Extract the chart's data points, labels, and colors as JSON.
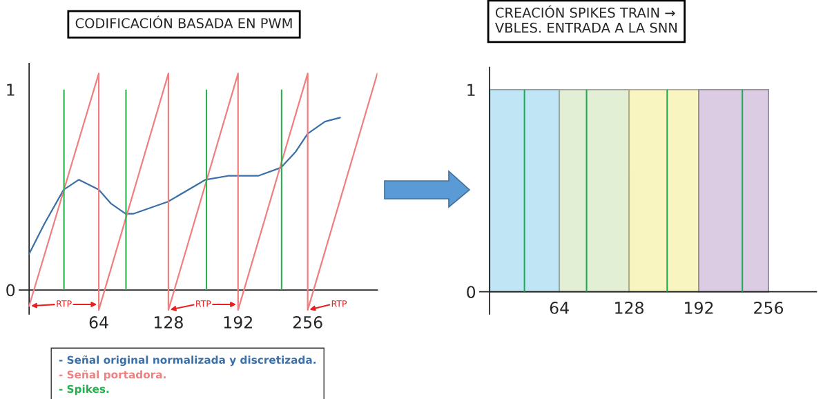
{
  "chart_data": [
    {
      "type": "line",
      "title": "CODIFICACIÓN BASADA EN PWM",
      "xlim": [
        -9,
        320
      ],
      "ylim": [
        -0.12,
        1.13
      ],
      "xticks": [
        64,
        128,
        192,
        256
      ],
      "yticks": [
        0,
        1
      ],
      "legend": "bottom",
      "series": [
        {
          "type": "line",
          "name": "- Señal original normalizada y discretizada.",
          "color": "#3a6fa8",
          "x": [
            0,
            14,
            31.7,
            45.6,
            64,
            75.4,
            88.7,
            95.7,
            127.4,
            162.2,
            183.8,
            211,
            231.3,
            245,
            256,
            271.9,
            285.8
          ],
          "values": [
            0.18,
            0.33,
            0.5,
            0.55,
            0.5,
            0.43,
            0.38,
            0.38,
            0.44,
            0.55,
            0.57,
            0.57,
            0.61,
            0.69,
            0.78,
            0.84,
            0.86
          ]
        },
        {
          "type": "line",
          "name": "- Señal portadora.",
          "color": "#f07f80",
          "x": [
            0,
            64,
            64,
            128,
            128,
            192,
            192,
            256,
            256,
            320
          ],
          "values": [
            -0.08,
            1.08,
            -0.1,
            1.08,
            -0.1,
            1.08,
            -0.1,
            1.08,
            -0.1,
            1.08
          ]
        },
        {
          "type": "bar",
          "name": "- Spikes.",
          "color": "#22b14c",
          "x": [
            32,
            89,
            163,
            232
          ],
          "values": [
            1,
            1,
            1,
            1
          ]
        }
      ],
      "annotations": [
        {
          "text": "RTP",
          "x": 0,
          "y": -0.08
        },
        {
          "text": "RTP",
          "x": 128,
          "y": -0.1
        },
        {
          "text": "RTP",
          "x": 256,
          "y": -0.1
        }
      ]
    },
    {
      "type": "histogram",
      "title": "CREACIÓN SPIKES TRAIN →\nVBLES. ENTRADA A LA SNN",
      "xlim": [
        -9,
        300
      ],
      "ylim": [
        -0.11,
        1.11
      ],
      "xticks": [
        64,
        128,
        192,
        256
      ],
      "yticks": [
        0,
        1
      ],
      "bins": [
        0,
        64,
        128,
        192,
        256
      ],
      "values": [
        1,
        1,
        1,
        1
      ],
      "colors": [
        "#c0e6f6",
        "#e2efd5",
        "#f8f5c0",
        "#dbcbe3"
      ],
      "series": [
        {
          "type": "bar",
          "color": "#1daa55",
          "x": [
            32,
            89,
            163,
            232
          ],
          "values": [
            1,
            1,
            1,
            1
          ]
        }
      ]
    }
  ]
}
